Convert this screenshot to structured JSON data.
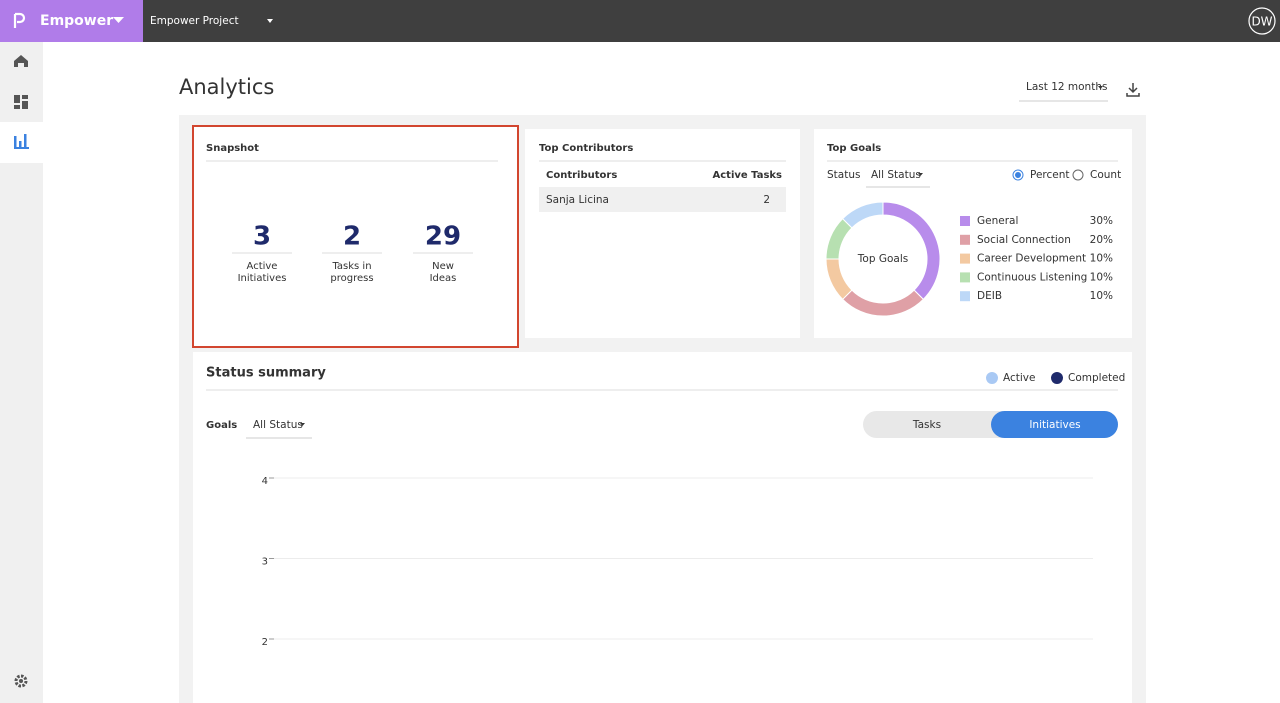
{
  "topbar": {
    "brand": "Empower",
    "project": "Empower Project",
    "avatar": "DW"
  },
  "page": {
    "title": "Analytics",
    "range": "Last 12 months"
  },
  "snapshot": {
    "title": "Snapshot",
    "stats": [
      {
        "value": 3,
        "label_lines": [
          "Active",
          "Initiatives"
        ]
      },
      {
        "value": 2,
        "label_lines": [
          "Tasks in",
          "progress"
        ]
      },
      {
        "value": 29,
        "label_lines": [
          "New",
          "Ideas"
        ]
      }
    ]
  },
  "contributors": {
    "title": "Top Contributors",
    "columns": [
      "Contributors",
      "Active Tasks"
    ],
    "rows": [
      [
        "Sanja Licina",
        2
      ]
    ]
  },
  "top_goals": {
    "title": "Top Goals",
    "filter_label": "Status",
    "filter": "All Status",
    "options": [
      "Percent",
      "Count"
    ],
    "selected_option": 0
  },
  "status_summary": {
    "title": "Status summary",
    "filter_label": "Goals",
    "filter": "All Status",
    "toggle": [
      "Tasks",
      "Initiatives"
    ],
    "selected_toggle": 1
  },
  "chart_data": [
    {
      "type": "pie",
      "center_label": "Top Goals",
      "categories": [
        "General",
        "Social Connection",
        "Career Development",
        "Continuous Listening",
        "DEIB"
      ],
      "values": [
        30,
        20,
        10,
        10,
        10
      ],
      "value_labels": [
        "30%",
        "20%",
        "10%",
        "10%",
        "10%"
      ],
      "colors": [
        "#b88ceb",
        "#dfa0a6",
        "#f3c9a1",
        "#b7e0b1",
        "#bdd8f7"
      ]
    },
    {
      "type": "line",
      "series": [
        {
          "name": "Active",
          "color": "#a9c9f4"
        },
        {
          "name": "Completed",
          "color": "#1f2a6b"
        }
      ],
      "ylim": [
        0,
        4
      ],
      "yticks": [
        2,
        3,
        4
      ],
      "grid": true
    }
  ]
}
